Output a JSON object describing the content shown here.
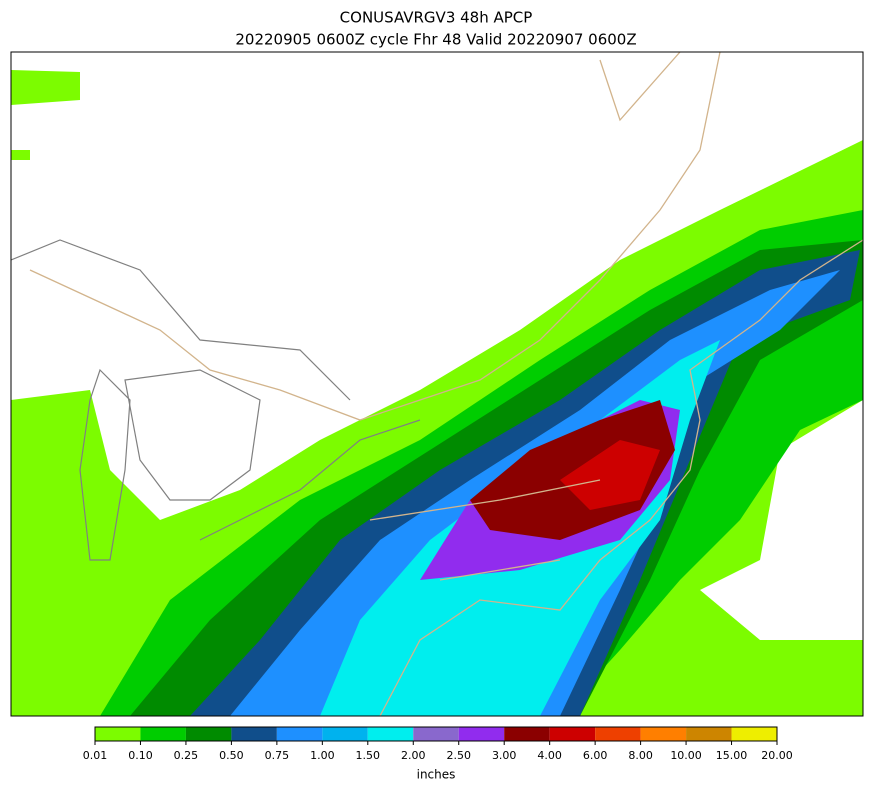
{
  "title": [
    "CONUSAVRGV3 48h APCP",
    "20220905 0600Z cycle Fhr 48 Valid 20220907 0600Z"
  ],
  "colorbar": {
    "label": "inches",
    "ticks": [
      {
        "value": 0.01,
        "label": "0.01"
      },
      {
        "value": 0.1,
        "label": "0.10"
      },
      {
        "value": 0.25,
        "label": "0.25"
      },
      {
        "value": 0.5,
        "label": "0.50"
      },
      {
        "value": 0.75,
        "label": "0.75"
      },
      {
        "value": 1,
        "label": "1.00"
      },
      {
        "value": 1.5,
        "label": "1.50"
      },
      {
        "value": 2,
        "label": "2.00"
      },
      {
        "value": 2.5,
        "label": "2.50"
      },
      {
        "value": 3,
        "label": "3.00"
      },
      {
        "value": 4,
        "label": "4.00"
      },
      {
        "value": 6,
        "label": "6.00"
      },
      {
        "value": 8,
        "label": "8.00"
      },
      {
        "value": 10,
        "label": "10.00"
      },
      {
        "value": 15,
        "label": "15.00"
      },
      {
        "value": 20,
        "label": "20.00"
      }
    ],
    "colors": [
      "#7cfc00",
      "#00cd00",
      "#008b00",
      "#104e8b",
      "#1e90ff",
      "#00b2ee",
      "#00eeee",
      "#8968cd",
      "#912cee",
      "#8b0000",
      "#cd0000",
      "#ee4000",
      "#ff7f00",
      "#cd8500",
      "#eeee00"
    ]
  }
}
